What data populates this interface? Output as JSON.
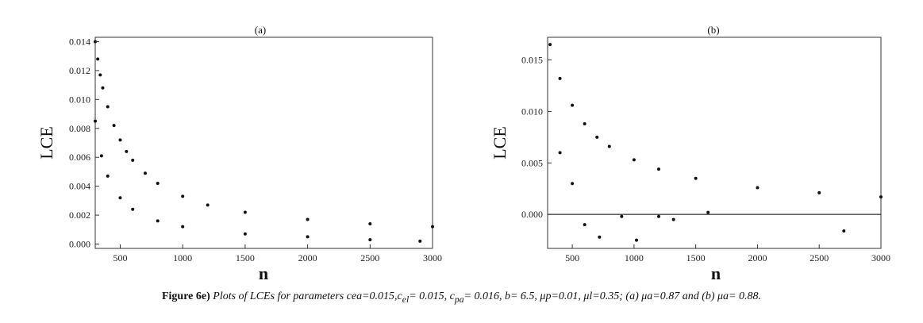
{
  "chart_data": [
    {
      "type": "scatter",
      "title": "(a)",
      "xlabel": "n",
      "ylabel": "LCE",
      "xlim": [
        300,
        3000
      ],
      "ylim": [
        -0.0003,
        0.0143
      ],
      "x_ticks": [
        "500",
        "1000",
        "1500",
        "2000",
        "2500",
        "3000"
      ],
      "y_ticks": [
        "0.000",
        "0.002",
        "0.004",
        "0.006",
        "0.008",
        "0.010",
        "0.012",
        "0.014"
      ],
      "grid": false,
      "series": [
        {
          "values": [
            [
              300,
              0.014
            ],
            [
              320,
              0.0128
            ],
            [
              340,
              0.0117
            ],
            [
              360,
              0.0108
            ],
            [
              400,
              0.0095
            ],
            [
              450,
              0.0082
            ],
            [
              500,
              0.0072
            ],
            [
              550,
              0.0064
            ],
            [
              600,
              0.0058
            ],
            [
              700,
              0.0049
            ],
            [
              800,
              0.0042
            ],
            [
              1000,
              0.0033
            ],
            [
              1200,
              0.0027
            ],
            [
              1500,
              0.0022
            ],
            [
              2000,
              0.0017
            ],
            [
              2500,
              0.0014
            ],
            [
              3000,
              0.0012
            ]
          ]
        },
        {
          "values": [
            [
              300,
              0.0085
            ],
            [
              350,
              0.0061
            ],
            [
              400,
              0.0047
            ],
            [
              500,
              0.0032
            ],
            [
              600,
              0.0024
            ],
            [
              800,
              0.0016
            ],
            [
              1000,
              0.0012
            ],
            [
              1500,
              0.0007
            ],
            [
              2000,
              0.0005
            ],
            [
              2500,
              0.0003
            ],
            [
              2900,
              0.0002
            ]
          ]
        }
      ]
    },
    {
      "type": "scatter",
      "title": "(b)",
      "xlabel": "n",
      "ylabel": "LCE",
      "xlim": [
        300,
        3000
      ],
      "ylim": [
        -0.0033,
        0.0172
      ],
      "x_ticks": [
        "500",
        "1000",
        "1500",
        "2000",
        "2500",
        "3000"
      ],
      "y_ticks": [
        "0.000",
        "0.005",
        "0.010",
        "0.015"
      ],
      "grid": false,
      "reference_line_y": 0,
      "series": [
        {
          "values": [
            [
              320,
              0.0165
            ],
            [
              400,
              0.0132
            ],
            [
              500,
              0.0106
            ],
            [
              600,
              0.0088
            ],
            [
              700,
              0.0075
            ],
            [
              800,
              0.0066
            ],
            [
              1000,
              0.0053
            ],
            [
              1200,
              0.0044
            ],
            [
              1500,
              0.0035
            ],
            [
              2000,
              0.0026
            ],
            [
              2500,
              0.0021
            ],
            [
              3000,
              0.0017
            ]
          ]
        },
        {
          "values": [
            [
              400,
              0.006
            ],
            [
              500,
              0.003
            ],
            [
              600,
              -0.001
            ],
            [
              720,
              -0.0022
            ],
            [
              900,
              -0.0002
            ],
            [
              1020,
              -0.0025
            ],
            [
              1200,
              -0.0002
            ],
            [
              1320,
              -0.0005
            ],
            [
              1600,
              0.0002
            ],
            [
              2700,
              -0.0016
            ]
          ]
        }
      ]
    }
  ],
  "caption": {
    "label": "Figure 6e)",
    "text_1": " Plots of LCEs for parameters cea=0.015,c",
    "sub_1": "el",
    "text_2": "= 0.015, c",
    "sub_2": "pa",
    "text_3": "= 0.016, b= 6.5, μp=0.01, μl=0.35; (a) μa=0.87 and (b) μa= 0.88."
  }
}
